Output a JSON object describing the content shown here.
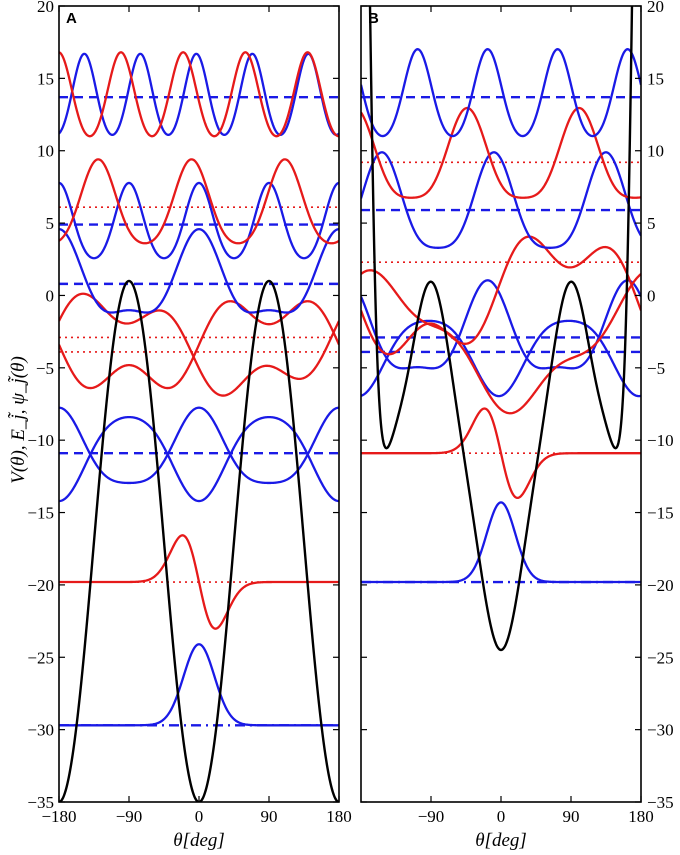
{
  "chart_data": {
    "type": "line",
    "ylabel": "V(θ), E_j̃, ψ_j̃(θ)",
    "y_ticks": [
      "20",
      "15",
      "10",
      "5",
      "0",
      "-5",
      "-10",
      "-15",
      "-20",
      "-25",
      "-30",
      "-35"
    ],
    "ylim": [
      -35,
      20
    ],
    "xlim": [
      -180,
      180
    ],
    "grid": false,
    "colors": {
      "potential": "#000000",
      "blue": "#1a1ae6",
      "red": "#e61a1a"
    },
    "panels": [
      {
        "id": "A",
        "label": "A",
        "xlabel": "θ[deg]",
        "x_ticks": [
          "-180",
          "-90",
          "0",
          "90",
          "180"
        ],
        "potential": {
          "kind": "cosine",
          "V0": -35,
          "V1": 1,
          "period_deg": 180,
          "phase_deg": 0
        },
        "levels": [
          {
            "color": "blue",
            "style": "dashdot",
            "energy": -29.7
          },
          {
            "color": "red",
            "style": "dotted",
            "energy": -19.8
          },
          {
            "color": "blue",
            "style": "dashed",
            "energy": -10.9
          },
          {
            "color": "red",
            "style": "dotted",
            "energy": -3.9
          },
          {
            "color": "red",
            "style": "dotted",
            "energy": -2.9
          },
          {
            "color": "blue",
            "style": "dashed",
            "energy": 0.8
          },
          {
            "color": "blue",
            "style": "dashed",
            "energy": 4.9
          },
          {
            "color": "red",
            "style": "dotted",
            "energy": 6.1
          },
          {
            "color": "blue",
            "style": "dashed",
            "energy": 13.7
          }
        ],
        "wavefunctions": [
          {
            "color": "blue",
            "base": -29.7,
            "amp": 5.6,
            "kind": "gauss",
            "center": 0,
            "width": 28
          },
          {
            "color": "red",
            "base": -19.8,
            "amp": 4.7,
            "kind": "dgauss",
            "center": 0,
            "width": 30
          },
          {
            "color": "blue",
            "base": -10.9,
            "amp": 2.6,
            "kind": "cos",
            "k": 2,
            "phase": 0,
            "wiggle": 0.6
          },
          {
            "color": "blue",
            "base": -10.9,
            "amp": -2.9,
            "kind": "cos",
            "k": 2,
            "phase": 0,
            "wiggle": 0.4
          },
          {
            "color": "red",
            "base": -3.4,
            "amp": 2.8,
            "kind": "sin",
            "k": 1,
            "phase": 0,
            "wiggle": 1.1
          },
          {
            "color": "red",
            "base": -3.4,
            "amp": -2.9,
            "kind": "sin",
            "k": 1,
            "phase": 0.4,
            "wiggle": 1.0
          },
          {
            "color": "blue",
            "base": 0.8,
            "amp": 2.8,
            "kind": "cos",
            "k": 2,
            "phase": 0,
            "wiggle": 1.0
          },
          {
            "color": "blue",
            "base": 4.9,
            "amp": 2.6,
            "kind": "cos",
            "k": 4,
            "phase": 0,
            "wiggle": 0.3
          },
          {
            "color": "red",
            "base": 6.1,
            "amp": 2.9,
            "kind": "cos",
            "k": 3,
            "phase": 0.5,
            "wiggle": 0.4
          },
          {
            "color": "blue",
            "base": 13.7,
            "amp": 2.8,
            "kind": "cos",
            "k": 5,
            "phase": 0.3,
            "wiggle": 0.2
          },
          {
            "color": "red",
            "base": 13.7,
            "amp": 2.9,
            "kind": "cos",
            "k": 4.5,
            "phase": 1.6,
            "wiggle": 0.2
          }
        ]
      },
      {
        "id": "B",
        "label": "B",
        "xlabel": "θ[deg]",
        "x_ticks": [
          "-90",
          "0",
          "90",
          "180"
        ],
        "potential": {
          "kind": "cosine3",
          "V0": -24.5,
          "V1": 1,
          "V2": -11.3
        },
        "levels": [
          {
            "color": "blue",
            "style": "dashdot",
            "energy": -19.8
          },
          {
            "color": "red",
            "style": "dotted",
            "energy": -10.9
          },
          {
            "color": "blue",
            "style": "dashed",
            "energy": -3.9
          },
          {
            "color": "blue",
            "style": "dashed",
            "energy": -2.9
          },
          {
            "color": "red",
            "style": "dotted",
            "energy": 2.3
          },
          {
            "color": "blue",
            "style": "dashed",
            "energy": 5.9
          },
          {
            "color": "red",
            "style": "dotted",
            "energy": 9.2
          },
          {
            "color": "blue",
            "style": "dashed",
            "energy": 13.7
          }
        ],
        "wavefunctions": [
          {
            "color": "blue",
            "base": -19.8,
            "amp": 5.5,
            "kind": "gauss",
            "center": 0,
            "width": 26
          },
          {
            "color": "red",
            "base": -10.9,
            "amp": 4.5,
            "kind": "dgauss",
            "center": 0,
            "width": 30
          },
          {
            "color": "blue",
            "base": -3.9,
            "amp": -2.6,
            "kind": "cos",
            "k": 2,
            "phase": 0.1,
            "wiggle": 0.5
          },
          {
            "color": "blue",
            "base": -2.9,
            "amp": 3.0,
            "kind": "cos",
            "k": 2,
            "phase": 0.6,
            "wiggle": 0.9
          },
          {
            "color": "red",
            "base": 0.0,
            "amp": 3.6,
            "kind": "sin",
            "k": 1,
            "phase": 0.2,
            "wiggle": 1.0
          },
          {
            "color": "red",
            "base": -3.2,
            "amp": -4.1,
            "kind": "sin",
            "k": 1,
            "phase": 1.2,
            "wiggle": 0.5
          },
          {
            "color": "blue",
            "base": 5.9,
            "amp": 3.3,
            "kind": "cos",
            "k": 2.5,
            "phase": 0.4,
            "wiggle": 0.6
          },
          {
            "color": "red",
            "base": 9.2,
            "amp": 3.1,
            "kind": "cos",
            "k": 2.5,
            "phase": 1.9,
            "wiggle": 0.6
          },
          {
            "color": "blue",
            "base": 13.7,
            "amp": 3.0,
            "kind": "cos",
            "k": 4,
            "phase": 1.2,
            "wiggle": 0.3
          }
        ]
      }
    ]
  }
}
